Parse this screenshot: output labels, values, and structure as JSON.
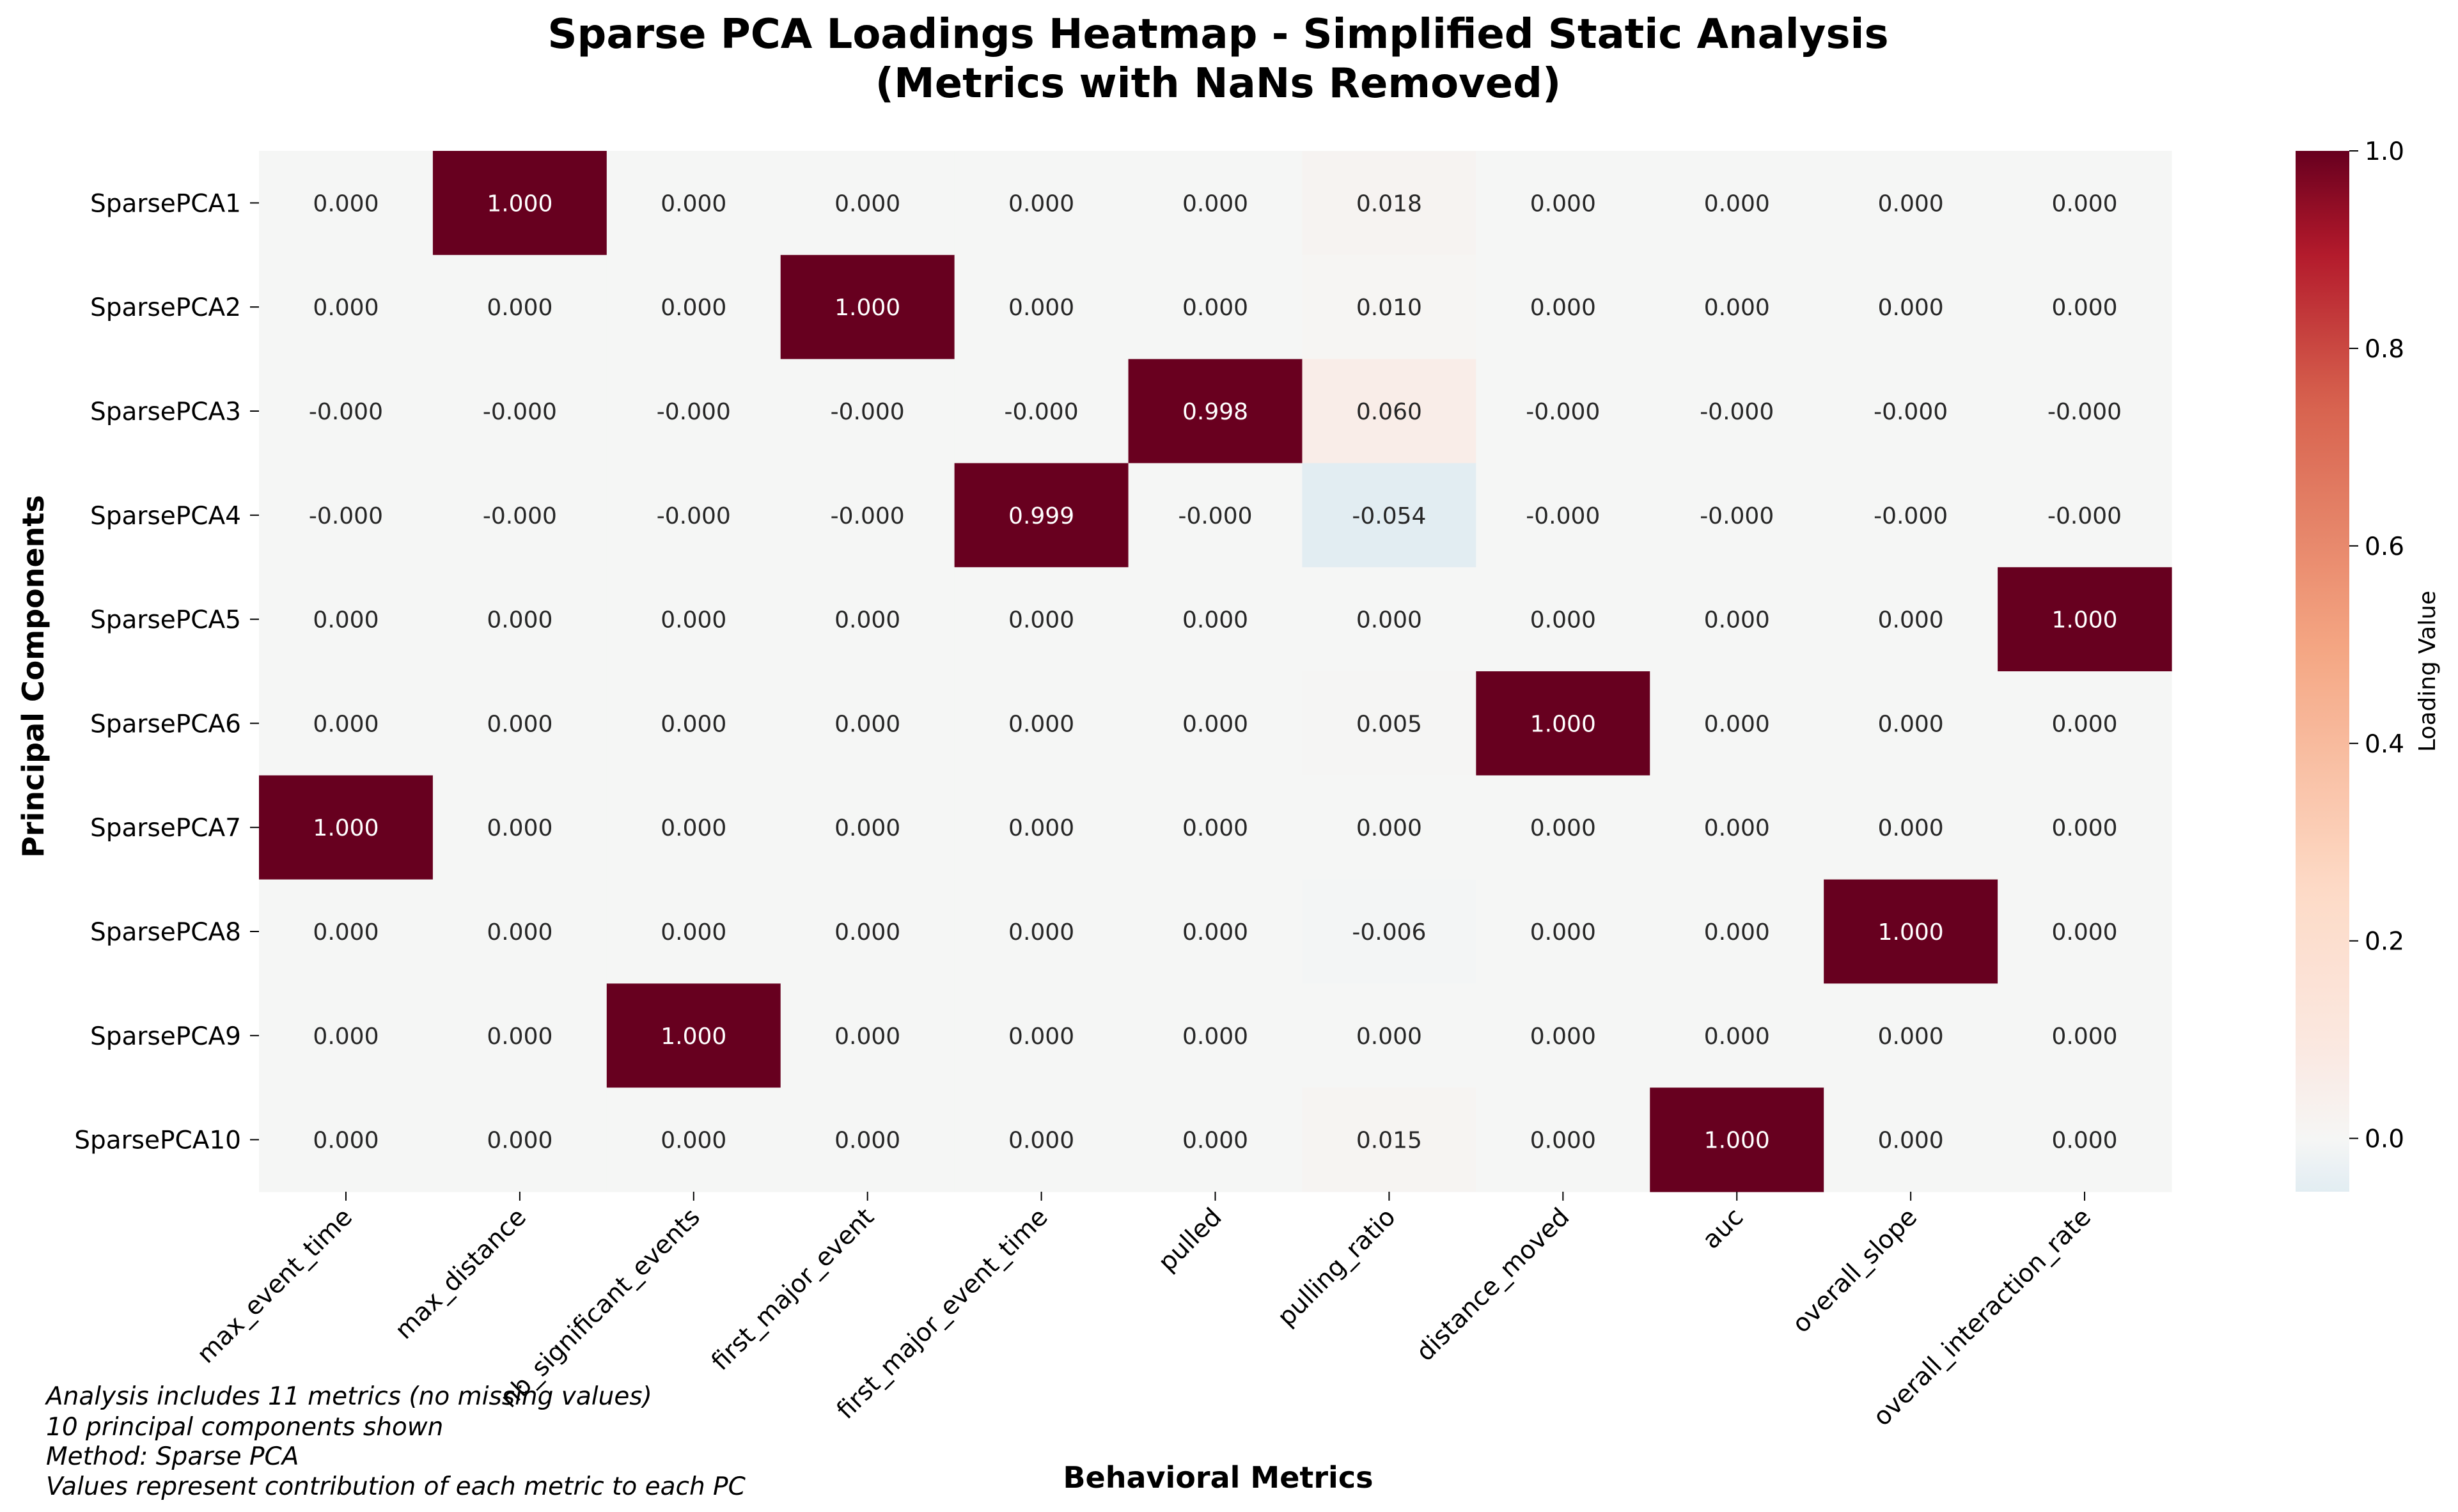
{
  "chart_data": {
    "type": "heatmap",
    "title_lines": [
      "Sparse PCA Loadings Heatmap - Simplified Static Analysis",
      "(Metrics with NaNs Removed)"
    ],
    "xlabel": "Behavioral Metrics",
    "ylabel": "Principal Components",
    "columns": [
      "max_event_time",
      "max_distance",
      "nb_significant_events",
      "first_major_event",
      "first_major_event_time",
      "pulled",
      "pulling_ratio",
      "distance_moved",
      "auc",
      "overall_slope",
      "overall_interaction_rate"
    ],
    "rows": [
      "SparsePCA1",
      "SparsePCA2",
      "SparsePCA3",
      "SparsePCA4",
      "SparsePCA5",
      "SparsePCA6",
      "SparsePCA7",
      "SparsePCA8",
      "SparsePCA9",
      "SparsePCA10"
    ],
    "values": [
      [
        0.0,
        1.0,
        0.0,
        0.0,
        0.0,
        0.0,
        0.018,
        0.0,
        0.0,
        0.0,
        0.0
      ],
      [
        0.0,
        0.0,
        0.0,
        1.0,
        0.0,
        0.0,
        0.01,
        0.0,
        0.0,
        0.0,
        0.0
      ],
      [
        -0.0,
        -0.0,
        -0.0,
        -0.0,
        -0.0,
        0.998,
        0.06,
        -0.0,
        -0.0,
        -0.0,
        -0.0
      ],
      [
        -0.0,
        -0.0,
        -0.0,
        -0.0,
        0.999,
        -0.0,
        -0.054,
        -0.0,
        -0.0,
        -0.0,
        -0.0
      ],
      [
        0.0,
        0.0,
        0.0,
        0.0,
        0.0,
        0.0,
        0.0,
        0.0,
        0.0,
        0.0,
        1.0
      ],
      [
        0.0,
        0.0,
        0.0,
        0.0,
        0.0,
        0.0,
        0.005,
        1.0,
        0.0,
        0.0,
        0.0
      ],
      [
        1.0,
        0.0,
        0.0,
        0.0,
        0.0,
        0.0,
        0.0,
        0.0,
        0.0,
        0.0,
        0.0
      ],
      [
        0.0,
        0.0,
        0.0,
        0.0,
        0.0,
        0.0,
        -0.006,
        0.0,
        0.0,
        1.0,
        0.0
      ],
      [
        0.0,
        0.0,
        1.0,
        0.0,
        0.0,
        0.0,
        0.0,
        0.0,
        0.0,
        0.0,
        0.0
      ],
      [
        0.0,
        0.0,
        0.0,
        0.0,
        0.0,
        0.0,
        0.015,
        0.0,
        1.0,
        0.0,
        0.0
      ]
    ],
    "cell_labels": [
      [
        "0.000",
        "1.000",
        "0.000",
        "0.000",
        "0.000",
        "0.000",
        "0.018",
        "0.000",
        "0.000",
        "0.000",
        "0.000"
      ],
      [
        "0.000",
        "0.000",
        "0.000",
        "1.000",
        "0.000",
        "0.000",
        "0.010",
        "0.000",
        "0.000",
        "0.000",
        "0.000"
      ],
      [
        "-0.000",
        "-0.000",
        "-0.000",
        "-0.000",
        "-0.000",
        "0.998",
        "0.060",
        "-0.000",
        "-0.000",
        "-0.000",
        "-0.000"
      ],
      [
        "-0.000",
        "-0.000",
        "-0.000",
        "-0.000",
        "0.999",
        "-0.000",
        "-0.054",
        "-0.000",
        "-0.000",
        "-0.000",
        "-0.000"
      ],
      [
        "0.000",
        "0.000",
        "0.000",
        "0.000",
        "0.000",
        "0.000",
        "0.000",
        "0.000",
        "0.000",
        "0.000",
        "1.000"
      ],
      [
        "0.000",
        "0.000",
        "0.000",
        "0.000",
        "0.000",
        "0.000",
        "0.005",
        "1.000",
        "0.000",
        "0.000",
        "0.000"
      ],
      [
        "1.000",
        "0.000",
        "0.000",
        "0.000",
        "0.000",
        "0.000",
        "0.000",
        "0.000",
        "0.000",
        "0.000",
        "0.000"
      ],
      [
        "0.000",
        "0.000",
        "0.000",
        "0.000",
        "0.000",
        "0.000",
        "-0.006",
        "0.000",
        "0.000",
        "1.000",
        "0.000"
      ],
      [
        "0.000",
        "0.000",
        "1.000",
        "0.000",
        "0.000",
        "0.000",
        "0.000",
        "0.000",
        "0.000",
        "0.000",
        "0.000"
      ],
      [
        "0.000",
        "0.000",
        "0.000",
        "0.000",
        "0.000",
        "0.000",
        "0.015",
        "0.000",
        "1.000",
        "0.000",
        "0.000"
      ]
    ],
    "colorbar": {
      "label": "Loading Value",
      "range": [
        -0.054,
        1.0
      ],
      "ticks": [
        0.0,
        0.2,
        0.4,
        0.6,
        0.8,
        1.0
      ],
      "tick_labels": [
        "0.0",
        "0.2",
        "0.4",
        "0.6",
        "0.8",
        "1.0"
      ],
      "colormap": "RdBu_r",
      "colormap_stops": [
        {
          "v": -1.0,
          "color": "#053061"
        },
        {
          "v": -0.75,
          "color": "#2166ac"
        },
        {
          "v": -0.5,
          "color": "#4393c3"
        },
        {
          "v": -0.25,
          "color": "#92c5de"
        },
        {
          "v": -0.1,
          "color": "#d1e5f0"
        },
        {
          "v": 0.0,
          "color": "#f5f6f5"
        },
        {
          "v": 0.1,
          "color": "#fbe7df"
        },
        {
          "v": 0.25,
          "color": "#fddbc7"
        },
        {
          "v": 0.5,
          "color": "#f4a582"
        },
        {
          "v": 0.75,
          "color": "#d6604d"
        },
        {
          "v": 0.9,
          "color": "#b2182b"
        },
        {
          "v": 1.0,
          "color": "#67001f"
        }
      ]
    },
    "footnotes": [
      "Analysis includes 11 metrics (no missing values)",
      "10 principal components shown",
      "Method: Sparse PCA",
      "Values represent contribution of each metric to each PC"
    ]
  }
}
